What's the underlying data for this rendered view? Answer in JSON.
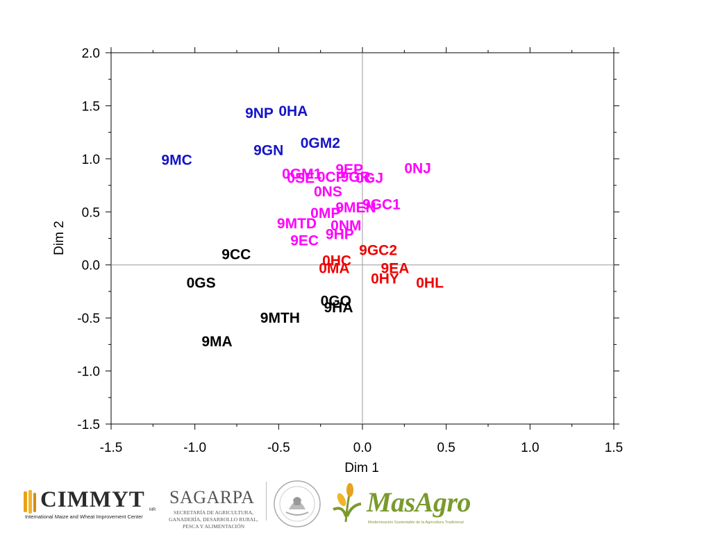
{
  "chart_data": {
    "type": "scatter",
    "xlabel": "Dim 1",
    "ylabel": "Dim 2",
    "xlim": [
      -1.5,
      1.5
    ],
    "ylim": [
      -1.5,
      2.0
    ],
    "x_ticks": [
      "-1.5",
      "-1.0",
      "-0.5",
      "0.0",
      "0.5",
      "1.0",
      "1.5"
    ],
    "y_ticks": [
      "-1.5",
      "-1.0",
      "-0.5",
      "0.0",
      "0.5",
      "1.0",
      "1.5",
      "2.0"
    ],
    "reference_lines": {
      "x": 0.0,
      "y": 0.0
    },
    "grid": false,
    "group_colors": [
      "#1414c8",
      "#ff00ff",
      "#ee0000",
      "#000000"
    ],
    "points": [
      {
        "label": "9NP",
        "x": -0.7,
        "y": 1.43,
        "group": 0
      },
      {
        "label": "0HA",
        "x": -0.5,
        "y": 1.45,
        "group": 0
      },
      {
        "label": "0GM2",
        "x": -0.37,
        "y": 1.15,
        "group": 0
      },
      {
        "label": "9GN",
        "x": -0.65,
        "y": 1.08,
        "group": 0
      },
      {
        "label": "9MC",
        "x": -1.2,
        "y": 0.99,
        "group": 0
      },
      {
        "label": "0GM1",
        "x": -0.48,
        "y": 0.86,
        "group": 1
      },
      {
        "label": "9EP",
        "x": -0.16,
        "y": 0.9,
        "group": 1
      },
      {
        "label": "0NJ",
        "x": 0.25,
        "y": 0.91,
        "group": 1
      },
      {
        "label": "0SE",
        "x": -0.45,
        "y": 0.82,
        "group": 1
      },
      {
        "label": "0CP",
        "x": -0.27,
        "y": 0.83,
        "group": 1
      },
      {
        "label": "9GR",
        "x": -0.13,
        "y": 0.83,
        "group": 1
      },
      {
        "label": "0GJ",
        "x": -0.04,
        "y": 0.82,
        "group": 1
      },
      {
        "label": "0NS",
        "x": -0.29,
        "y": 0.69,
        "group": 1
      },
      {
        "label": "9GC1",
        "x": 0.0,
        "y": 0.57,
        "group": 1
      },
      {
        "label": "9MEN",
        "x": -0.16,
        "y": 0.54,
        "group": 1
      },
      {
        "label": "0MP",
        "x": -0.31,
        "y": 0.49,
        "group": 1
      },
      {
        "label": "9MTD",
        "x": -0.51,
        "y": 0.39,
        "group": 1
      },
      {
        "label": "0NM",
        "x": -0.19,
        "y": 0.37,
        "group": 1
      },
      {
        "label": "9HP",
        "x": -0.22,
        "y": 0.29,
        "group": 1
      },
      {
        "label": "9EC",
        "x": -0.43,
        "y": 0.23,
        "group": 1
      },
      {
        "label": "9GC2",
        "x": -0.02,
        "y": 0.14,
        "group": 2
      },
      {
        "label": "0HC",
        "x": -0.24,
        "y": 0.04,
        "group": 2
      },
      {
        "label": "0MA",
        "x": -0.26,
        "y": -0.03,
        "group": 2
      },
      {
        "label": "9EA",
        "x": 0.11,
        "y": -0.03,
        "group": 2
      },
      {
        "label": "0HY",
        "x": 0.05,
        "y": -0.13,
        "group": 2
      },
      {
        "label": "0HL",
        "x": 0.32,
        "y": -0.17,
        "group": 2
      },
      {
        "label": "9CC",
        "x": -0.84,
        "y": 0.1,
        "group": 3
      },
      {
        "label": "0GS",
        "x": -1.05,
        "y": -0.17,
        "group": 3
      },
      {
        "label": "0GO",
        "x": -0.25,
        "y": -0.34,
        "group": 3
      },
      {
        "label": "9HA",
        "x": -0.23,
        "y": -0.4,
        "group": 3
      },
      {
        "label": "9MTH",
        "x": -0.61,
        "y": -0.5,
        "group": 3
      },
      {
        "label": "9MA",
        "x": -0.96,
        "y": -0.72,
        "group": 3
      }
    ]
  },
  "logos": {
    "cimmyt": {
      "name": "CIMMYT",
      "mark": "MR",
      "subtitle": "International Maize and Wheat Improvement Center"
    },
    "sagarpa": {
      "name": "SAGARPA",
      "lines": [
        "SECRETARÍA DE AGRICULTURA,",
        "GANADERÍA, DESARROLLO RURAL,",
        "PESCA Y ALIMENTACIÓN"
      ]
    },
    "masagro": {
      "name": "MasAgro",
      "subtitle": "Modernización Sustentable de la Agricultura Tradicional"
    },
    "seal": "mexico-coat-of-arms"
  }
}
